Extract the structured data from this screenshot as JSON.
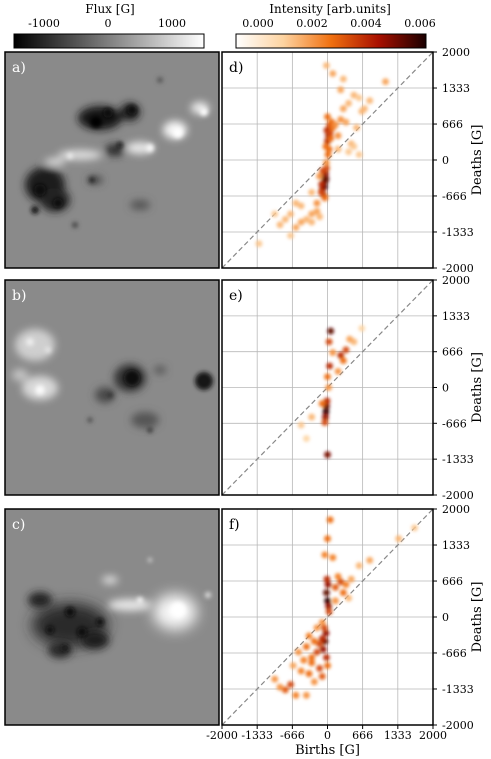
{
  "colorbars": {
    "flux": {
      "title": "Flux [G]",
      "ticks": [
        "-1000",
        "0",
        "1000"
      ],
      "tick_values": [
        -1000,
        0,
        1000
      ],
      "range": [
        -1500,
        1500
      ]
    },
    "intensity": {
      "title": "Intensity [arb.units]",
      "ticks": [
        "0.000",
        "0.002",
        "0.004",
        "0.006"
      ],
      "tick_values": [
        0,
        0.002,
        0.004,
        0.006
      ],
      "range": [
        0,
        0.0068
      ]
    }
  },
  "magnetogram_panels": [
    {
      "label": "a)"
    },
    {
      "label": "b)"
    },
    {
      "label": "c)"
    }
  ],
  "colors": {
    "magnetogram_background": "#8a8a8a",
    "diagonal": "#888888",
    "grid": "#b8b8b8"
  },
  "chart_data": [
    {
      "type": "scatter",
      "label": "d)",
      "xlabel": "",
      "ylabel": "Deaths [G]",
      "xlim": [
        -2000,
        2000
      ],
      "ylim": [
        -2000,
        2000
      ],
      "xticks": [],
      "yticks": [
        "-2000",
        "-1333",
        "-666",
        "0",
        "666",
        "1333",
        "2000"
      ],
      "grid": true,
      "reference_line": "y = x (dashed)",
      "points": [
        [
          -50,
          -400,
          0.9
        ],
        [
          -80,
          -300,
          1
        ],
        [
          -60,
          -500,
          1
        ],
        [
          -30,
          -350,
          0.9
        ],
        [
          -100,
          -550,
          0.8
        ],
        [
          -40,
          -250,
          0.8
        ],
        [
          -20,
          -150,
          0.6
        ],
        [
          -70,
          -650,
          0.8
        ],
        [
          -110,
          -450,
          0.7
        ],
        [
          -90,
          -200,
          0.6
        ],
        [
          -120,
          -600,
          0.6
        ],
        [
          -50,
          -700,
          0.5
        ],
        [
          -20,
          -50,
          0.4
        ],
        [
          10,
          100,
          0.5
        ],
        [
          0,
          350,
          0.7
        ],
        [
          20,
          450,
          0.8
        ],
        [
          -10,
          550,
          0.7
        ],
        [
          40,
          650,
          0.6
        ],
        [
          60,
          400,
          0.5
        ],
        [
          80,
          700,
          0.5
        ],
        [
          -30,
          250,
          0.5
        ],
        [
          30,
          200,
          0.5
        ],
        [
          50,
          500,
          0.6
        ],
        [
          100,
          600,
          0.5
        ],
        [
          0,
          800,
          0.5
        ],
        [
          150,
          650,
          0.4
        ],
        [
          200,
          450,
          0.4
        ],
        [
          250,
          750,
          0.4
        ],
        [
          300,
          950,
          0.35
        ],
        [
          350,
          700,
          0.35
        ],
        [
          400,
          1050,
          0.3
        ],
        [
          450,
          300,
          0.3
        ],
        [
          550,
          600,
          0.3
        ],
        [
          650,
          900,
          0.3
        ],
        [
          700,
          950,
          0.3
        ],
        [
          250,
          1300,
          0.35
        ],
        [
          100,
          1600,
          0.35
        ],
        [
          500,
          1200,
          0.3
        ],
        [
          300,
          1500,
          0.3
        ],
        [
          1100,
          1450,
          0.35
        ],
        [
          -20,
          1750,
          0.3
        ],
        [
          600,
          1150,
          0.25
        ],
        [
          800,
          1100,
          0.3
        ],
        [
          -200,
          -800,
          0.4
        ],
        [
          -300,
          -1000,
          0.35
        ],
        [
          -500,
          -1150,
          0.35
        ],
        [
          -600,
          -1250,
          0.35
        ],
        [
          -400,
          -1100,
          0.3
        ],
        [
          -700,
          -1000,
          0.3
        ],
        [
          -900,
          -1200,
          0.3
        ],
        [
          -200,
          -950,
          0.35
        ],
        [
          -600,
          -800,
          0.3
        ],
        [
          -1300,
          -1550,
          0.25
        ],
        [
          -700,
          -1400,
          0.25
        ],
        [
          -300,
          -1150,
          0.3
        ],
        [
          -150,
          -1050,
          0.3
        ],
        [
          -500,
          -850,
          0.3
        ],
        [
          -1000,
          -1000,
          0.25
        ],
        [
          200,
          200,
          0.3
        ],
        [
          400,
          150,
          0.25
        ],
        [
          -300,
          -600,
          0.3
        ],
        [
          500,
          250,
          0.25
        ],
        [
          -150,
          -300,
          0.4
        ],
        [
          600,
          100,
          0.25
        ],
        [
          -800,
          -1100,
          0.3
        ]
      ]
    },
    {
      "type": "scatter",
      "label": "e)",
      "xlabel": "",
      "ylabel": "Deaths [G]",
      "xlim": [
        -2000,
        2000
      ],
      "ylim": [
        -2000,
        2000
      ],
      "xticks": [],
      "yticks": [
        "-2000",
        "-1333",
        "-666",
        "0",
        "666",
        "1333",
        "2000"
      ],
      "grid": true,
      "reference_line": "y = x (dashed)",
      "points": [
        [
          -30,
          -450,
          1
        ],
        [
          -20,
          -350,
          0.9
        ],
        [
          -40,
          -550,
          0.8
        ],
        [
          -10,
          -250,
          0.7
        ],
        [
          0,
          -1250,
          0.85
        ],
        [
          20,
          0,
          0.4
        ],
        [
          0,
          200,
          0.5
        ],
        [
          40,
          400,
          0.7
        ],
        [
          60,
          1050,
          0.9
        ],
        [
          30,
          850,
          0.6
        ],
        [
          250,
          600,
          0.7
        ],
        [
          350,
          700,
          0.6
        ],
        [
          300,
          500,
          0.5
        ],
        [
          500,
          850,
          0.3
        ],
        [
          420,
          900,
          0.35
        ],
        [
          200,
          300,
          0.4
        ],
        [
          -300,
          -550,
          0.3
        ],
        [
          -500,
          -700,
          0.25
        ],
        [
          -100,
          -300,
          0.5
        ],
        [
          -50,
          -650,
          0.6
        ],
        [
          100,
          650,
          0.4
        ],
        [
          650,
          1100,
          0.2
        ],
        [
          -400,
          -950,
          0.2
        ]
      ]
    },
    {
      "type": "scatter",
      "label": "f)",
      "xlabel": "Births [G]",
      "ylabel": "Deaths [G]",
      "xlim": [
        -2000,
        2000
      ],
      "ylim": [
        -2000,
        2000
      ],
      "xticks": [
        "-2000",
        "-1333",
        "-666",
        "0",
        "666",
        "1333",
        "2000"
      ],
      "yticks": [
        "-2000",
        "-1333",
        "-666",
        "0",
        "666",
        "1333",
        "2000"
      ],
      "grid": true,
      "reference_line": "y = x (dashed)",
      "points": [
        [
          0,
          300,
          1
        ],
        [
          -20,
          450,
          0.9
        ],
        [
          20,
          200,
          0.8
        ],
        [
          10,
          600,
          0.8
        ],
        [
          -10,
          700,
          0.7
        ],
        [
          30,
          100,
          0.6
        ],
        [
          -30,
          -300,
          0.8
        ],
        [
          -50,
          -450,
          0.9
        ],
        [
          -80,
          -600,
          0.8
        ],
        [
          -20,
          -750,
          0.7
        ],
        [
          -100,
          -400,
          0.7
        ],
        [
          -60,
          -200,
          0.6
        ],
        [
          -150,
          -500,
          0.6
        ],
        [
          -200,
          -650,
          0.6
        ],
        [
          -250,
          -450,
          0.5
        ],
        [
          -300,
          -750,
          0.5
        ],
        [
          -400,
          -550,
          0.5
        ],
        [
          -350,
          -350,
          0.45
        ],
        [
          -450,
          -800,
          0.45
        ],
        [
          -150,
          -950,
          0.6
        ],
        [
          -100,
          -1100,
          0.55
        ],
        [
          -350,
          -1050,
          0.5
        ],
        [
          -500,
          -1000,
          0.45
        ],
        [
          -700,
          -1250,
          0.6
        ],
        [
          -800,
          -1350,
          0.55
        ],
        [
          -900,
          -1300,
          0.4
        ],
        [
          -1000,
          -1150,
          0.4
        ],
        [
          -600,
          -1450,
          0.45
        ],
        [
          -400,
          -1450,
          0.4
        ],
        [
          -300,
          -850,
          0.5
        ],
        [
          -200,
          -200,
          0.4
        ],
        [
          -100,
          -100,
          0.4
        ],
        [
          150,
          550,
          0.55
        ],
        [
          250,
          650,
          0.6
        ],
        [
          300,
          450,
          0.5
        ],
        [
          200,
          750,
          0.45
        ],
        [
          350,
          600,
          0.45
        ],
        [
          450,
          700,
          0.35
        ],
        [
          600,
          950,
          0.3
        ],
        [
          800,
          1050,
          0.35
        ],
        [
          1350,
          1450,
          0.3
        ],
        [
          1650,
          1650,
          0.25
        ],
        [
          100,
          1100,
          0.45
        ],
        [
          0,
          1450,
          0.5
        ],
        [
          50,
          1800,
          0.5
        ],
        [
          -50,
          1150,
          0.45
        ],
        [
          400,
          350,
          0.3
        ],
        [
          150,
          300,
          0.4
        ],
        [
          -650,
          -900,
          0.35
        ],
        [
          -550,
          -650,
          0.4
        ],
        [
          -250,
          -1200,
          0.4
        ],
        [
          0,
          -900,
          0.5
        ]
      ]
    }
  ]
}
